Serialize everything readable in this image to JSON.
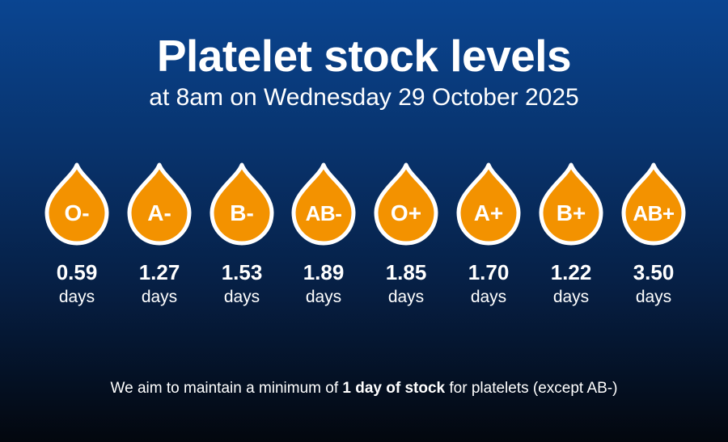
{
  "header": {
    "title": "Platelet stock levels",
    "subtitle": "at 8am on Wednesday 29 October 2025"
  },
  "colors": {
    "drop_fill": "#f39200",
    "drop_outline": "#ffffff",
    "background_top": "#0a4591",
    "background_bottom": "#03070e"
  },
  "blood_groups": [
    {
      "group": "O-",
      "value": "0.59",
      "unit": "days"
    },
    {
      "group": "A-",
      "value": "1.27",
      "unit": "days"
    },
    {
      "group": "B-",
      "value": "1.53",
      "unit": "days"
    },
    {
      "group": "AB-",
      "value": "1.89",
      "unit": "days"
    },
    {
      "group": "O+",
      "value": "1.85",
      "unit": "days"
    },
    {
      "group": "A+",
      "value": "1.70",
      "unit": "days"
    },
    {
      "group": "B+",
      "value": "1.22",
      "unit": "days"
    },
    {
      "group": "AB+",
      "value": "3.50",
      "unit": "days"
    }
  ],
  "footnote": {
    "before": "We aim to maintain a minimum of ",
    "emphasis": "1 day of stock",
    "after": " for platelets (except AB-)"
  }
}
